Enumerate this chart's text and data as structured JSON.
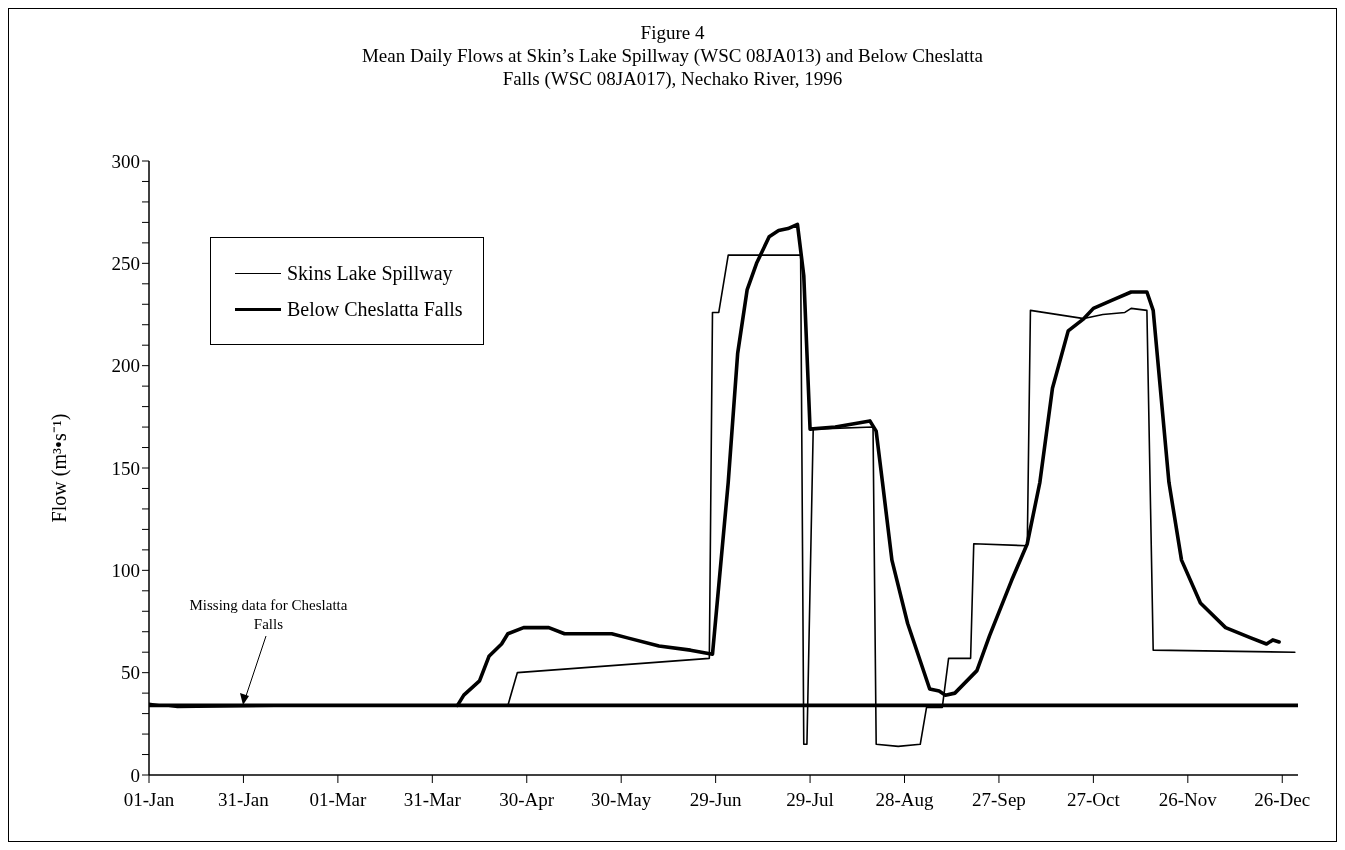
{
  "chart_data": {
    "type": "line",
    "title": "Figure 4",
    "subtitle": "Mean Daily Flows at Skin’s Lake Spillway (WSC 08JA013) and Below Cheslatta Falls (WSC 08JA017), Nechako River, 1996",
    "ylabel": "Flow (m³•s⁻¹)",
    "xlim": [
      "1996-01-01",
      "1996-12-31"
    ],
    "xticks": [
      {
        "value": "1996-01-01",
        "label": "01-Jan"
      },
      {
        "value": "1996-01-31",
        "label": "31-Jan"
      },
      {
        "value": "1996-03-01",
        "label": "01-Mar"
      },
      {
        "value": "1996-03-31",
        "label": "31-Mar"
      },
      {
        "value": "1996-04-30",
        "label": "30-Apr"
      },
      {
        "value": "1996-05-30",
        "label": "30-May"
      },
      {
        "value": "1996-06-29",
        "label": "29-Jun"
      },
      {
        "value": "1996-07-29",
        "label": "29-Jul"
      },
      {
        "value": "1996-08-28",
        "label": "28-Aug"
      },
      {
        "value": "1996-09-27",
        "label": "27-Sep"
      },
      {
        "value": "1996-10-27",
        "label": "27-Oct"
      },
      {
        "value": "1996-11-26",
        "label": "26-Nov"
      },
      {
        "value": "1996-12-26",
        "label": "26-Dec"
      }
    ],
    "ylim": [
      0,
      300
    ],
    "yticks": [
      0,
      {
        "value": 10,
        "label": null
      },
      {
        "value": 20,
        "label": null
      },
      {
        "value": 30,
        "label": null
      },
      {
        "value": 40,
        "label": null
      },
      50,
      {
        "value": 60,
        "label": null
      },
      {
        "value": 70,
        "label": null
      },
      {
        "value": 80,
        "label": null
      },
      {
        "value": 90,
        "label": null
      },
      100,
      {
        "value": 110,
        "label": null
      },
      {
        "value": 120,
        "label": null
      },
      {
        "value": 130,
        "label": null
      },
      {
        "value": 140,
        "label": null
      },
      150,
      {
        "value": 160,
        "label": null
      },
      {
        "value": 170,
        "label": null
      },
      {
        "value": 180,
        "label": null
      },
      {
        "value": 190,
        "label": null
      },
      200,
      {
        "value": 210,
        "label": null
      },
      {
        "value": 220,
        "label": null
      },
      {
        "value": 230,
        "label": null
      },
      {
        "value": 240,
        "label": null
      },
      250,
      {
        "value": 260,
        "label": null
      },
      {
        "value": 270,
        "label": null
      },
      {
        "value": 280,
        "label": null
      },
      {
        "value": 290,
        "label": null
      },
      300
    ],
    "grid": false,
    "legend": "top left",
    "marker": "none",
    "line_style": "solid",
    "series": [
      {
        "name": "Skins Lake Spillway",
        "color": "#000000",
        "x": [
          "1996-01-01",
          "1996-01-10",
          "1996-03-01",
          "1996-04-24",
          "1996-04-27",
          "1996-06-27",
          "1996-06-28",
          "1996-06-30",
          "1996-07-03",
          "1996-07-26",
          "1996-07-27",
          "1996-07-28",
          "1996-07-30",
          "1996-08-18",
          "1996-08-19",
          "1996-08-26",
          "1996-09-02",
          "1996-09-04",
          "1996-09-09",
          "1996-09-11",
          "1996-09-18",
          "1996-09-19",
          "1996-10-06",
          "1996-10-07",
          "1996-10-24",
          "1996-10-30",
          "1996-11-06",
          "1996-11-08",
          "1996-11-13",
          "1996-11-15",
          "1996-12-30"
        ],
        "values": [
          35,
          33,
          34,
          34,
          50,
          57,
          226,
          226,
          254,
          254,
          15,
          15,
          169,
          170,
          15,
          14,
          15,
          33,
          33,
          57,
          57,
          113,
          112,
          227,
          223,
          225,
          226,
          228,
          227,
          61,
          60
        ]
      },
      {
        "name": "Below Cheslatta Falls",
        "color": "#000000",
        "x": [
          "1996-04-08",
          "1996-04-10",
          "1996-04-15",
          "1996-04-18",
          "1996-04-22",
          "1996-04-24",
          "1996-04-29",
          "1996-05-07",
          "1996-05-12",
          "1996-05-27",
          "1996-06-01",
          "1996-06-11",
          "1996-06-21",
          "1996-06-28",
          "1996-07-03",
          "1996-07-06",
          "1996-07-09",
          "1996-07-12",
          "1996-07-16",
          "1996-07-19",
          "1996-07-22",
          "1996-07-25",
          "1996-07-27",
          "1996-07-29",
          "1996-08-06",
          "1996-08-17",
          "1996-08-19",
          "1996-08-21",
          "1996-08-24",
          "1996-08-29",
          "1996-09-05",
          "1996-09-08",
          "1996-09-10",
          "1996-09-13",
          "1996-09-20",
          "1996-09-24",
          "1996-10-01",
          "1996-10-06",
          "1996-10-10",
          "1996-10-14",
          "1996-10-19",
          "1996-10-24",
          "1996-10-27",
          "1996-11-02",
          "1996-11-08",
          "1996-11-13",
          "1996-11-15",
          "1996-11-20",
          "1996-11-24",
          "1996-11-30",
          "1996-12-08",
          "1996-12-16",
          "1996-12-21",
          "1996-12-23",
          "1996-12-25"
        ],
        "values": [
          34,
          39,
          46,
          58,
          64,
          69,
          72,
          72,
          69,
          69,
          67,
          63,
          61,
          59,
          143,
          206,
          237,
          250,
          263,
          266,
          267,
          269,
          244,
          169,
          170,
          173,
          168,
          143,
          105,
          74,
          42,
          41,
          39,
          40,
          51,
          68,
          95,
          113,
          143,
          189,
          217,
          223,
          228,
          232,
          236,
          236,
          227,
          143,
          105,
          84,
          72,
          67,
          64,
          66,
          65
        ]
      }
    ],
    "ref_lines": [
      {
        "axis": "y",
        "value": 34,
        "label": null,
        "color": "#000000"
      }
    ],
    "annotations": [
      {
        "text": "Missing data for Cheslatta Falls",
        "x": "1996-01-31",
        "y": 34
      }
    ]
  }
}
